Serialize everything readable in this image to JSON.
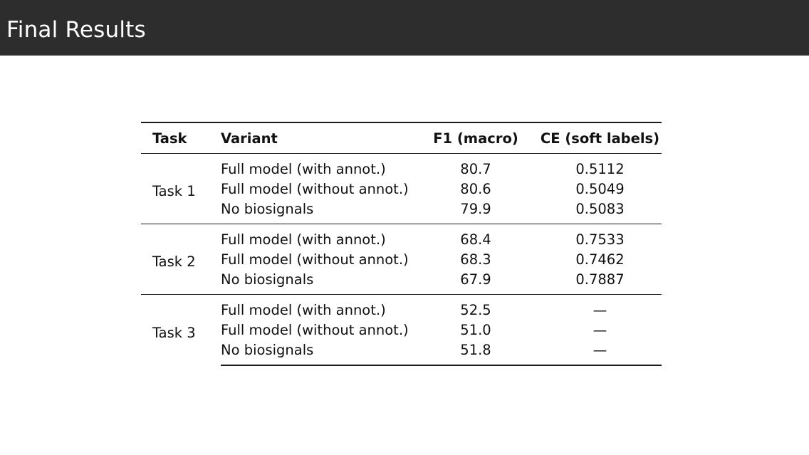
{
  "slide": {
    "title": "Final Results"
  },
  "table": {
    "headers": {
      "task": "Task",
      "variant": "Variant",
      "f1": "F1 (macro)",
      "ce": "CE (soft labels)"
    },
    "groups": [
      {
        "task": "Task 1",
        "rows": [
          {
            "variant": "Full model (with annot.)",
            "f1": "80.7",
            "ce": "0.5112"
          },
          {
            "variant": "Full model (without annot.)",
            "f1": "80.6",
            "ce": "0.5049"
          },
          {
            "variant": "No biosignals",
            "f1": "79.9",
            "ce": "0.5083"
          }
        ]
      },
      {
        "task": "Task 2",
        "rows": [
          {
            "variant": "Full model (with annot.)",
            "f1": "68.4",
            "ce": "0.7533"
          },
          {
            "variant": "Full model (without annot.)",
            "f1": "68.3",
            "ce": "0.7462"
          },
          {
            "variant": "No biosignals",
            "f1": "67.9",
            "ce": "0.7887"
          }
        ]
      },
      {
        "task": "Task 3",
        "rows": [
          {
            "variant": "Full model (with annot.)",
            "f1": "52.5",
            "ce": "—"
          },
          {
            "variant": "Full model (without annot.)",
            "f1": "51.0",
            "ce": "—"
          },
          {
            "variant": "No biosignals",
            "f1": "51.8",
            "ce": "—"
          }
        ]
      }
    ]
  }
}
